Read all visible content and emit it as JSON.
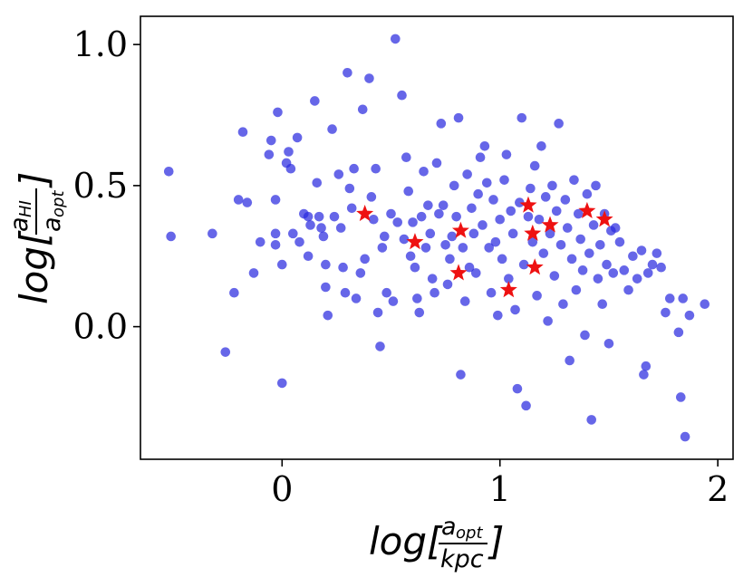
{
  "chart_data": {
    "type": "scatter",
    "xlabel": "log[a_opt / kpc]",
    "ylabel": "log[a_HI / a_opt]",
    "xlabel_parts": {
      "prefix": "log[",
      "num": "a",
      "num_sub": "opt",
      "den": "kpc",
      "suffix": "]"
    },
    "ylabel_parts": {
      "prefix": "log[",
      "num": "a",
      "num_sub": "HI",
      "den": "a",
      "den_sub": "opt",
      "suffix": "]"
    },
    "xlim": [
      -0.65,
      2.07
    ],
    "ylim": [
      -0.47,
      1.1
    ],
    "xticks": [
      0,
      1,
      2
    ],
    "xtick_labels": [
      "0",
      "1",
      "2"
    ],
    "yticks": [
      0.0,
      0.5,
      1.0
    ],
    "ytick_labels": [
      "0.0",
      "0.5",
      "1.0"
    ],
    "grid": false,
    "series": [
      {
        "marker": "circle",
        "color": "#2b2bdf",
        "points": [
          [
            -0.52,
            0.55
          ],
          [
            -0.51,
            0.32
          ],
          [
            -0.32,
            0.33
          ],
          [
            -0.26,
            -0.09
          ],
          [
            -0.22,
            0.12
          ],
          [
            -0.2,
            0.45
          ],
          [
            -0.18,
            0.69
          ],
          [
            -0.16,
            0.44
          ],
          [
            -0.13,
            0.19
          ],
          [
            -0.1,
            0.3
          ],
          [
            -0.06,
            0.61
          ],
          [
            -0.05,
            0.66
          ],
          [
            -0.03,
            0.29
          ],
          [
            -0.03,
            0.45
          ],
          [
            -0.02,
            0.76
          ],
          [
            -0.03,
            0.33
          ],
          [
            0.0,
            0.22
          ],
          [
            0.0,
            -0.2
          ],
          [
            0.02,
            0.58
          ],
          [
            0.03,
            0.62
          ],
          [
            0.04,
            0.56
          ],
          [
            0.05,
            0.33
          ],
          [
            0.07,
            0.67
          ],
          [
            0.08,
            0.3
          ],
          [
            0.1,
            0.4
          ],
          [
            0.12,
            0.25
          ],
          [
            0.12,
            0.39
          ],
          [
            0.13,
            0.36
          ],
          [
            0.15,
            0.8
          ],
          [
            0.16,
            0.51
          ],
          [
            0.17,
            0.39
          ],
          [
            0.18,
            0.35
          ],
          [
            0.19,
            0.32
          ],
          [
            0.2,
            0.22
          ],
          [
            0.2,
            0.14
          ],
          [
            0.21,
            0.04
          ],
          [
            0.23,
            0.7
          ],
          [
            0.24,
            0.39
          ],
          [
            0.26,
            0.54
          ],
          [
            0.27,
            0.35
          ],
          [
            0.28,
            0.21
          ],
          [
            0.29,
            0.12
          ],
          [
            0.3,
            0.9
          ],
          [
            0.31,
            0.49
          ],
          [
            0.32,
            0.42
          ],
          [
            0.33,
            0.56
          ],
          [
            0.34,
            0.1
          ],
          [
            0.36,
            0.19
          ],
          [
            0.37,
            0.77
          ],
          [
            0.38,
            0.24
          ],
          [
            0.4,
            0.88
          ],
          [
            0.41,
            0.46
          ],
          [
            0.42,
            0.38
          ],
          [
            0.43,
            0.56
          ],
          [
            0.44,
            0.05
          ],
          [
            0.45,
            -0.07
          ],
          [
            0.46,
            0.28
          ],
          [
            0.47,
            0.32
          ],
          [
            0.48,
            0.12
          ],
          [
            0.5,
            0.4
          ],
          [
            0.51,
            0.09
          ],
          [
            0.52,
            1.02
          ],
          [
            0.53,
            0.37
          ],
          [
            0.55,
            0.82
          ],
          [
            0.56,
            0.31
          ],
          [
            0.57,
            0.6
          ],
          [
            0.58,
            0.48
          ],
          [
            0.59,
            0.25
          ],
          [
            0.6,
            0.37
          ],
          [
            0.61,
            0.21
          ],
          [
            0.62,
            0.1
          ],
          [
            0.63,
            0.05
          ],
          [
            0.64,
            0.39
          ],
          [
            0.65,
            0.55
          ],
          [
            0.66,
            0.28
          ],
          [
            0.67,
            0.43
          ],
          [
            0.68,
            0.33
          ],
          [
            0.69,
            0.17
          ],
          [
            0.7,
            0.12
          ],
          [
            0.71,
            0.58
          ],
          [
            0.72,
            0.4
          ],
          [
            0.73,
            0.72
          ],
          [
            0.74,
            0.43
          ],
          [
            0.75,
            0.29
          ],
          [
            0.76,
            0.15
          ],
          [
            0.77,
            0.24
          ],
          [
            0.78,
            0.32
          ],
          [
            0.79,
            0.5
          ],
          [
            0.8,
            0.39
          ],
          [
            0.81,
            0.74
          ],
          [
            0.82,
            -0.17
          ],
          [
            0.83,
            0.28
          ],
          [
            0.84,
            0.09
          ],
          [
            0.85,
            0.54
          ],
          [
            0.86,
            0.21
          ],
          [
            0.87,
            0.42
          ],
          [
            0.88,
            0.33
          ],
          [
            0.89,
            0.19
          ],
          [
            0.9,
            0.47
          ],
          [
            0.91,
            0.6
          ],
          [
            0.92,
            0.36
          ],
          [
            0.93,
            0.64
          ],
          [
            0.94,
            0.51
          ],
          [
            0.95,
            0.28
          ],
          [
            0.96,
            0.12
          ],
          [
            0.97,
            0.45
          ],
          [
            0.98,
            0.3
          ],
          [
            0.99,
            0.04
          ],
          [
            1.0,
            0.38
          ],
          [
            1.01,
            0.24
          ],
          [
            1.02,
            0.52
          ],
          [
            1.03,
            0.61
          ],
          [
            1.04,
            0.17
          ],
          [
            1.05,
            0.41
          ],
          [
            1.06,
            0.33
          ],
          [
            1.07,
            0.06
          ],
          [
            1.08,
            -0.22
          ],
          [
            1.09,
            0.44
          ],
          [
            1.1,
            0.74
          ],
          [
            1.11,
            0.22
          ],
          [
            1.12,
            -0.28
          ],
          [
            1.13,
            0.39
          ],
          [
            1.14,
            0.49
          ],
          [
            1.15,
            0.3
          ],
          [
            1.16,
            0.57
          ],
          [
            1.17,
            0.11
          ],
          [
            1.18,
            0.38
          ],
          [
            1.19,
            0.64
          ],
          [
            1.2,
            0.26
          ],
          [
            1.21,
            0.46
          ],
          [
            1.22,
            0.02
          ],
          [
            1.23,
            0.33
          ],
          [
            1.24,
            0.5
          ],
          [
            1.25,
            0.18
          ],
          [
            1.26,
            0.41
          ],
          [
            1.27,
            0.72
          ],
          [
            1.28,
            0.29
          ],
          [
            1.29,
            0.08
          ],
          [
            1.3,
            0.45
          ],
          [
            1.31,
            0.35
          ],
          [
            1.32,
            -0.12
          ],
          [
            1.33,
            0.24
          ],
          [
            1.34,
            0.52
          ],
          [
            1.35,
            0.13
          ],
          [
            1.36,
            0.4
          ],
          [
            1.37,
            0.31
          ],
          [
            1.38,
            0.2
          ],
          [
            1.39,
            -0.03
          ],
          [
            1.4,
            0.47
          ],
          [
            1.41,
            0.26
          ],
          [
            1.42,
            -0.33
          ],
          [
            1.43,
            0.36
          ],
          [
            1.44,
            0.5
          ],
          [
            1.45,
            0.17
          ],
          [
            1.46,
            0.29
          ],
          [
            1.47,
            0.08
          ],
          [
            1.48,
            0.4
          ],
          [
            1.49,
            0.22
          ],
          [
            1.5,
            -0.06
          ],
          [
            1.51,
            0.34
          ],
          [
            1.52,
            0.19
          ],
          [
            1.53,
            0.35
          ],
          [
            1.55,
            0.3
          ],
          [
            1.57,
            0.2
          ],
          [
            1.59,
            0.13
          ],
          [
            1.61,
            0.25
          ],
          [
            1.63,
            0.17
          ],
          [
            1.65,
            0.27
          ],
          [
            1.66,
            -0.17
          ],
          [
            1.67,
            -0.14
          ],
          [
            1.68,
            0.19
          ],
          [
            1.7,
            0.22
          ],
          [
            1.72,
            0.26
          ],
          [
            1.74,
            0.21
          ],
          [
            1.76,
            0.05
          ],
          [
            1.78,
            0.1
          ],
          [
            1.82,
            -0.02
          ],
          [
            1.83,
            -0.25
          ],
          [
            1.84,
            0.1
          ],
          [
            1.85,
            -0.39
          ],
          [
            1.87,
            0.04
          ],
          [
            1.94,
            0.08
          ]
        ]
      },
      {
        "marker": "star",
        "color": "#ee1111",
        "points": [
          [
            0.38,
            0.4
          ],
          [
            0.61,
            0.3
          ],
          [
            0.81,
            0.19
          ],
          [
            0.82,
            0.34
          ],
          [
            1.04,
            0.13
          ],
          [
            1.13,
            0.43
          ],
          [
            1.15,
            0.33
          ],
          [
            1.16,
            0.21
          ],
          [
            1.23,
            0.36
          ],
          [
            1.4,
            0.41
          ],
          [
            1.48,
            0.38
          ]
        ]
      }
    ]
  }
}
